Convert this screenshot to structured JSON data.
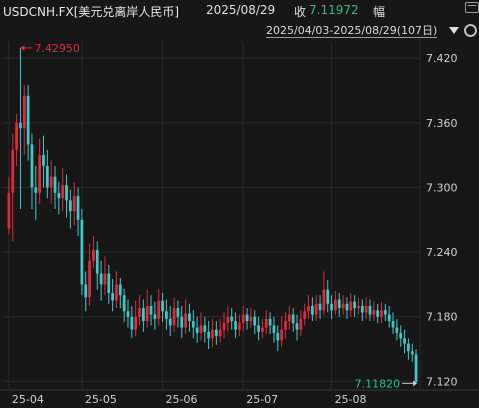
{
  "header": {
    "symbol": "USDCNH.FX[美元兑离岸人民币]",
    "date": "2025/08/29",
    "close_label": "收",
    "close_value": "7.11972",
    "amplitude_label": "幅"
  },
  "range_selector": {
    "label": "2025/04/03-2025/08/29(107日)"
  },
  "colors": {
    "up": "#e0293b",
    "down": "#3ec9c9",
    "grid": "#2a2a2a",
    "high_label": "#e0293b",
    "low_label": "#26c281"
  },
  "chart_data": {
    "type": "candlestick",
    "title": "",
    "y_ticks": [
      "7.420",
      "7.360",
      "7.300",
      "7.240",
      "7.180",
      "7.120"
    ],
    "ylim": [
      7.112,
      7.435
    ],
    "x_ticks": [
      {
        "label": "25-04",
        "index": 0
      },
      {
        "label": "25-05",
        "index": 19
      },
      {
        "label": "25-06",
        "index": 40
      },
      {
        "label": "25-07",
        "index": 61
      },
      {
        "label": "25-08",
        "index": 84
      }
    ],
    "max_annotation": {
      "label": "7.42950",
      "index": 3,
      "value": 7.4295
    },
    "min_annotation": {
      "label": "7.11820",
      "index": 106,
      "value": 7.1182
    },
    "candles": [
      [
        7.262,
        7.295,
        7.31,
        7.256
      ],
      [
        7.295,
        7.335,
        7.35,
        7.25
      ],
      [
        7.335,
        7.36,
        7.368,
        7.32
      ],
      [
        7.36,
        7.355,
        7.4295,
        7.28
      ],
      [
        7.355,
        7.385,
        7.395,
        7.33
      ],
      [
        7.385,
        7.34,
        7.395,
        7.325
      ],
      [
        7.34,
        7.3,
        7.35,
        7.28
      ],
      [
        7.3,
        7.295,
        7.32,
        7.27
      ],
      [
        7.295,
        7.33,
        7.345,
        7.285
      ],
      [
        7.33,
        7.32,
        7.348,
        7.3
      ],
      [
        7.32,
        7.3,
        7.335,
        7.29
      ],
      [
        7.3,
        7.31,
        7.325,
        7.285
      ],
      [
        7.31,
        7.295,
        7.32,
        7.28
      ],
      [
        7.295,
        7.29,
        7.305,
        7.275
      ],
      [
        7.29,
        7.302,
        7.318,
        7.278
      ],
      [
        7.302,
        7.288,
        7.312,
        7.272
      ],
      [
        7.288,
        7.278,
        7.298,
        7.262
      ],
      [
        7.278,
        7.292,
        7.305,
        7.265
      ],
      [
        7.292,
        7.27,
        7.3,
        7.255
      ],
      [
        7.27,
        7.21,
        7.28,
        7.2
      ],
      [
        7.21,
        7.198,
        7.222,
        7.185
      ],
      [
        7.198,
        7.232,
        7.248,
        7.19
      ],
      [
        7.232,
        7.242,
        7.255,
        7.225
      ],
      [
        7.242,
        7.22,
        7.25,
        7.205
      ],
      [
        7.22,
        7.21,
        7.232,
        7.195
      ],
      [
        7.21,
        7.22,
        7.236,
        7.2
      ],
      [
        7.22,
        7.202,
        7.228,
        7.192
      ],
      [
        7.202,
        7.195,
        7.215,
        7.185
      ],
      [
        7.195,
        7.21,
        7.222,
        7.188
      ],
      [
        7.21,
        7.2,
        7.216,
        7.188
      ],
      [
        7.2,
        7.185,
        7.206,
        7.175
      ],
      [
        7.185,
        7.18,
        7.196,
        7.17
      ],
      [
        7.18,
        7.168,
        7.19,
        7.16
      ],
      [
        7.168,
        7.18,
        7.195,
        7.162
      ],
      [
        7.18,
        7.188,
        7.2,
        7.172
      ],
      [
        7.188,
        7.176,
        7.196,
        7.166
      ],
      [
        7.176,
        7.19,
        7.205,
        7.17
      ],
      [
        7.19,
        7.182,
        7.2,
        7.172
      ],
      [
        7.182,
        7.178,
        7.194,
        7.168
      ],
      [
        7.178,
        7.195,
        7.206,
        7.172
      ],
      [
        7.195,
        7.185,
        7.202,
        7.175
      ],
      [
        7.185,
        7.178,
        7.196,
        7.168
      ],
      [
        7.178,
        7.172,
        7.19,
        7.162
      ],
      [
        7.172,
        7.188,
        7.198,
        7.166
      ],
      [
        7.188,
        7.18,
        7.195,
        7.17
      ],
      [
        7.18,
        7.17,
        7.19,
        7.16
      ],
      [
        7.17,
        7.183,
        7.196,
        7.164
      ],
      [
        7.183,
        7.176,
        7.192,
        7.166
      ],
      [
        7.176,
        7.17,
        7.186,
        7.16
      ],
      [
        7.17,
        7.165,
        7.18,
        7.156
      ],
      [
        7.165,
        7.172,
        7.184,
        7.158
      ],
      [
        7.172,
        7.166,
        7.18,
        7.156
      ],
      [
        7.166,
        7.16,
        7.176,
        7.15
      ],
      [
        7.16,
        7.168,
        7.178,
        7.152
      ],
      [
        7.168,
        7.162,
        7.176,
        7.154
      ],
      [
        7.162,
        7.168,
        7.178,
        7.156
      ],
      [
        7.168,
        7.174,
        7.184,
        7.16
      ],
      [
        7.174,
        7.18,
        7.19,
        7.166
      ],
      [
        7.18,
        7.176,
        7.188,
        7.168
      ],
      [
        7.176,
        7.168,
        7.184,
        7.16
      ],
      [
        7.168,
        7.174,
        7.182,
        7.162
      ],
      [
        7.174,
        7.182,
        7.19,
        7.166
      ],
      [
        7.182,
        7.176,
        7.188,
        7.168
      ],
      [
        7.176,
        7.18,
        7.188,
        7.17
      ],
      [
        7.18,
        7.172,
        7.186,
        7.164
      ],
      [
        7.172,
        7.166,
        7.18,
        7.158
      ],
      [
        7.166,
        7.17,
        7.178,
        7.16
      ],
      [
        7.17,
        7.178,
        7.186,
        7.164
      ],
      [
        7.178,
        7.172,
        7.184,
        7.164
      ],
      [
        7.172,
        7.165,
        7.18,
        7.156
      ],
      [
        7.165,
        7.158,
        7.172,
        7.148
      ],
      [
        7.158,
        7.168,
        7.18,
        7.152
      ],
      [
        7.168,
        7.176,
        7.184,
        7.16
      ],
      [
        7.176,
        7.182,
        7.19,
        7.168
      ],
      [
        7.182,
        7.174,
        7.188,
        7.166
      ],
      [
        7.174,
        7.168,
        7.182,
        7.158
      ],
      [
        7.168,
        7.178,
        7.186,
        7.162
      ],
      [
        7.178,
        7.185,
        7.192,
        7.172
      ],
      [
        7.185,
        7.19,
        7.2,
        7.178
      ],
      [
        7.19,
        7.182,
        7.198,
        7.176
      ],
      [
        7.182,
        7.192,
        7.2,
        7.176
      ],
      [
        7.192,
        7.186,
        7.2,
        7.178
      ],
      [
        7.186,
        7.205,
        7.222,
        7.182
      ],
      [
        7.205,
        7.192,
        7.214,
        7.184
      ],
      [
        7.192,
        7.186,
        7.2,
        7.178
      ],
      [
        7.186,
        7.196,
        7.204,
        7.182
      ],
      [
        7.196,
        7.188,
        7.202,
        7.18
      ],
      [
        7.188,
        7.192,
        7.2,
        7.182
      ],
      [
        7.192,
        7.186,
        7.198,
        7.178
      ],
      [
        7.186,
        7.194,
        7.202,
        7.18
      ],
      [
        7.194,
        7.188,
        7.2,
        7.18
      ],
      [
        7.188,
        7.19,
        7.198,
        7.182
      ],
      [
        7.19,
        7.184,
        7.196,
        7.176
      ],
      [
        7.184,
        7.19,
        7.198,
        7.178
      ],
      [
        7.19,
        7.182,
        7.196,
        7.176
      ],
      [
        7.182,
        7.186,
        7.194,
        7.176
      ],
      [
        7.186,
        7.18,
        7.192,
        7.174
      ],
      [
        7.18,
        7.186,
        7.194,
        7.174
      ],
      [
        7.186,
        7.182,
        7.192,
        7.176
      ],
      [
        7.182,
        7.176,
        7.19,
        7.17
      ],
      [
        7.176,
        7.17,
        7.184,
        7.164
      ],
      [
        7.17,
        7.165,
        7.178,
        7.158
      ],
      [
        7.165,
        7.16,
        7.172,
        7.152
      ],
      [
        7.16,
        7.155,
        7.168,
        7.146
      ],
      [
        7.155,
        7.148,
        7.16,
        7.14
      ],
      [
        7.148,
        7.145,
        7.155,
        7.138
      ],
      [
        7.145,
        7.1197,
        7.15,
        7.1182
      ]
    ]
  }
}
